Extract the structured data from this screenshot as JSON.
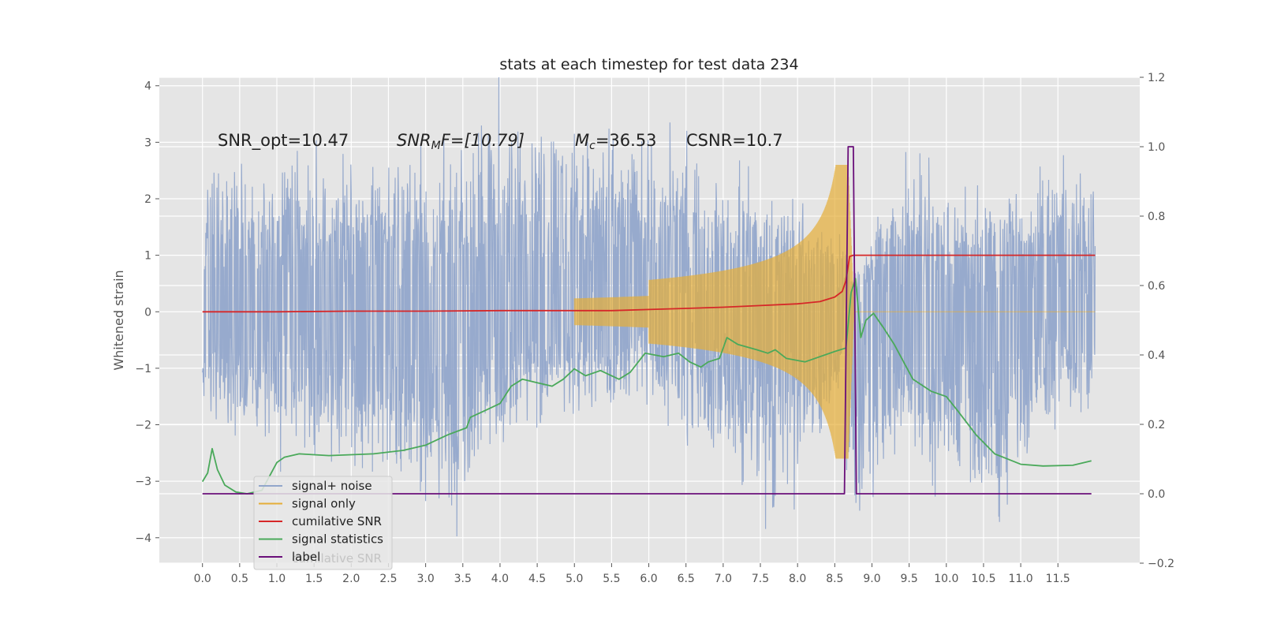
{
  "chart_data": {
    "type": "line",
    "title": "stats at each timestep for test data 234",
    "ylabel": "Whitened strain",
    "y2label": "",
    "xlabel": "",
    "xlim": [
      -0.58,
      12.6
    ],
    "ylim": [
      -4.45,
      4.15
    ],
    "y2lim": [
      -0.2,
      1.2
    ],
    "x_ticks": [
      "0.0",
      "0.5",
      "1.0",
      "1.5",
      "2.0",
      "2.5",
      "3.0",
      "3.5",
      "4.0",
      "4.5",
      "5.0",
      "5.5",
      "6.0",
      "6.5",
      "7.0",
      "7.5",
      "8.0",
      "8.5",
      "9.0",
      "9.5",
      "10.0",
      "10.5",
      "11.0",
      "11.5"
    ],
    "y_ticks": [
      "−4",
      "−3",
      "−2",
      "−1",
      "0",
      "1",
      "2",
      "3",
      "4"
    ],
    "y2_ticks": [
      "−0.2",
      "0.0",
      "0.2",
      "0.4",
      "0.6",
      "0.8",
      "1.0",
      "1.2"
    ],
    "grid": true,
    "legend_position": "lower-left",
    "annotations": {
      "snr_opt": "SNR_opt=10.47",
      "snr_mf_base": "SNR",
      "snr_mf_sub": "M",
      "snr_mf_rest": "F=[10.79]",
      "mc_base": "M",
      "mc_sub": "c",
      "mc_rest": "=36.53",
      "csnr": "CSNR=10.7"
    },
    "series": [
      {
        "name": "signal+ noise",
        "axis": "left",
        "color": "#92a6cb",
        "kind": "noise",
        "x_range": [
          0.0,
          12.0
        ],
        "envelope": [
          [
            0.0,
            2.7,
            -1.9
          ],
          [
            3.35,
            2.8,
            -3.7
          ],
          [
            4.05,
            3.8,
            -2.2
          ],
          [
            6.0,
            3.2,
            -1.5
          ],
          [
            7.72,
            2.0,
            -3.8
          ],
          [
            8.62,
            1.5,
            -1.6
          ],
          [
            8.72,
            0.7,
            -4.1
          ],
          [
            9.5,
            2.6,
            -2.5
          ],
          [
            10.7,
            2.0,
            -3.9
          ],
          [
            11.5,
            2.6,
            -2.1
          ],
          [
            12.0,
            2.7,
            -1.8
          ]
        ]
      },
      {
        "name": "signal only",
        "axis": "left",
        "color": "#e5ae38",
        "kind": "chirp",
        "x_range": [
          5.0,
          12.0
        ],
        "peak_x": 8.68,
        "peak_amplitude": 2.6
      },
      {
        "name": "cumilative SNR",
        "axis": "left",
        "color": "#d62728",
        "kind": "line",
        "points": [
          [
            0.0,
            0.0
          ],
          [
            1.0,
            0.0
          ],
          [
            2.0,
            0.01
          ],
          [
            3.0,
            0.01
          ],
          [
            4.0,
            0.02
          ],
          [
            5.0,
            0.02
          ],
          [
            5.5,
            0.02
          ],
          [
            6.0,
            0.04
          ],
          [
            6.5,
            0.06
          ],
          [
            7.0,
            0.08
          ],
          [
            7.5,
            0.11
          ],
          [
            8.0,
            0.14
          ],
          [
            8.3,
            0.18
          ],
          [
            8.5,
            0.26
          ],
          [
            8.6,
            0.36
          ],
          [
            8.65,
            0.55
          ],
          [
            8.7,
            0.98
          ],
          [
            8.75,
            1.0
          ],
          [
            9.0,
            1.0
          ],
          [
            12.0,
            1.0
          ]
        ]
      },
      {
        "name": "signal statistics",
        "axis": "right",
        "color": "#4aa95a",
        "kind": "line",
        "points": [
          [
            0.0,
            0.035
          ],
          [
            0.07,
            0.06
          ],
          [
            0.13,
            0.13
          ],
          [
            0.2,
            0.07
          ],
          [
            0.3,
            0.025
          ],
          [
            0.45,
            0.005
          ],
          [
            0.6,
            0.0
          ],
          [
            0.8,
            0.01
          ],
          [
            1.0,
            0.09
          ],
          [
            1.1,
            0.105
          ],
          [
            1.3,
            0.115
          ],
          [
            1.7,
            0.11
          ],
          [
            2.3,
            0.115
          ],
          [
            2.7,
            0.125
          ],
          [
            3.0,
            0.14
          ],
          [
            3.3,
            0.17
          ],
          [
            3.55,
            0.19
          ],
          [
            3.6,
            0.22
          ],
          [
            3.8,
            0.24
          ],
          [
            4.0,
            0.26
          ],
          [
            4.15,
            0.31
          ],
          [
            4.3,
            0.33
          ],
          [
            4.5,
            0.32
          ],
          [
            4.7,
            0.31
          ],
          [
            4.85,
            0.33
          ],
          [
            5.0,
            0.36
          ],
          [
            5.15,
            0.34
          ],
          [
            5.35,
            0.355
          ],
          [
            5.6,
            0.33
          ],
          [
            5.75,
            0.35
          ],
          [
            5.95,
            0.405
          ],
          [
            6.2,
            0.395
          ],
          [
            6.4,
            0.405
          ],
          [
            6.55,
            0.38
          ],
          [
            6.7,
            0.365
          ],
          [
            6.8,
            0.38
          ],
          [
            6.95,
            0.39
          ],
          [
            7.05,
            0.45
          ],
          [
            7.2,
            0.43
          ],
          [
            7.45,
            0.415
          ],
          [
            7.6,
            0.405
          ],
          [
            7.7,
            0.415
          ],
          [
            7.85,
            0.39
          ],
          [
            8.1,
            0.38
          ],
          [
            8.3,
            0.395
          ],
          [
            8.5,
            0.41
          ],
          [
            8.65,
            0.42
          ],
          [
            8.72,
            0.58
          ],
          [
            8.78,
            0.62
          ],
          [
            8.85,
            0.45
          ],
          [
            8.92,
            0.5
          ],
          [
            9.02,
            0.52
          ],
          [
            9.15,
            0.48
          ],
          [
            9.3,
            0.43
          ],
          [
            9.55,
            0.33
          ],
          [
            9.8,
            0.295
          ],
          [
            10.0,
            0.28
          ],
          [
            10.15,
            0.24
          ],
          [
            10.4,
            0.17
          ],
          [
            10.65,
            0.115
          ],
          [
            11.0,
            0.085
          ],
          [
            11.3,
            0.08
          ],
          [
            11.7,
            0.082
          ],
          [
            11.95,
            0.095
          ]
        ]
      },
      {
        "name": "label",
        "axis": "right",
        "color": "#6a0f7a",
        "kind": "line",
        "points": [
          [
            0.0,
            0.0
          ],
          [
            8.63,
            0.0
          ],
          [
            8.68,
            1.0
          ],
          [
            8.75,
            1.0
          ],
          [
            8.79,
            0.0
          ],
          [
            11.95,
            0.0
          ]
        ]
      }
    ],
    "legend_ghost_text": "cumilative SNR"
  }
}
